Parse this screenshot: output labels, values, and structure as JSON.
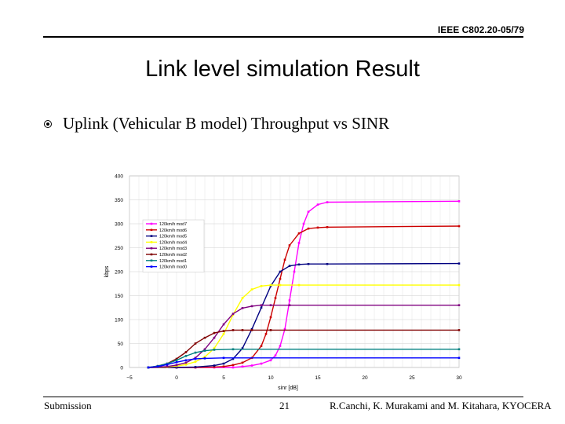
{
  "header": {
    "doc_ref": "IEEE C802.20-05/79"
  },
  "slide": {
    "title": "Link level simulation Result",
    "bullet": "Uplink (Vehicular B model) Throughput vs SINR"
  },
  "footer": {
    "left": "Submission",
    "page": "21",
    "right": "R.Canchi, K. Murakami and M. Kitahara, KYOCERA"
  },
  "chart_data": {
    "type": "line",
    "title": "",
    "xlabel": "sinr [dB]",
    "ylabel": "kbps",
    "xlim": [
      -5,
      30
    ],
    "ylim": [
      0,
      400
    ],
    "xticks": [
      -5,
      0,
      5,
      10,
      15,
      20,
      25,
      30
    ],
    "yticks": [
      0,
      50,
      100,
      150,
      200,
      250,
      300,
      350,
      400
    ],
    "grid": true,
    "legend_position": "upper-left",
    "series": [
      {
        "name": "120km/h mod7",
        "color": "#ff00ff",
        "x": [
          -3,
          0,
          2,
          4,
          6,
          7,
          8,
          9,
          10,
          10.5,
          11,
          11.5,
          12,
          12.5,
          13,
          13.5,
          14,
          15,
          16,
          30
        ],
        "y": [
          0,
          0,
          0,
          0,
          0,
          2,
          4,
          8,
          15,
          25,
          45,
          80,
          140,
          200,
          260,
          300,
          325,
          340,
          345,
          347
        ]
      },
      {
        "name": "120km/h mod6",
        "color": "#cc0000",
        "x": [
          -3,
          0,
          2,
          4,
          5,
          6,
          7,
          8,
          9,
          9.5,
          10,
          10.5,
          11,
          11.5,
          12,
          13,
          14,
          15,
          16,
          30
        ],
        "y": [
          0,
          0,
          0,
          1,
          2,
          5,
          10,
          20,
          45,
          70,
          105,
          145,
          185,
          225,
          255,
          280,
          290,
          292,
          293,
          295
        ]
      },
      {
        "name": "120km/h mod5",
        "color": "#000080",
        "x": [
          -3,
          0,
          2,
          4,
          5,
          6,
          7,
          8,
          9,
          10,
          11,
          12,
          13,
          14,
          16,
          30
        ],
        "y": [
          0,
          0,
          1,
          4,
          8,
          18,
          40,
          80,
          125,
          170,
          200,
          212,
          215,
          216,
          216,
          217
        ]
      },
      {
        "name": "120km/h mod4",
        "color": "#ffff00",
        "x": [
          -3,
          -1,
          0,
          1,
          2,
          3,
          4,
          5,
          6,
          7,
          8,
          9,
          10,
          11,
          13,
          30
        ],
        "y": [
          0,
          1,
          3,
          6,
          12,
          22,
          40,
          70,
          110,
          145,
          163,
          170,
          172,
          172,
          172,
          172
        ]
      },
      {
        "name": "120km/h mod3",
        "color": "#800080",
        "x": [
          -3,
          -1,
          0,
          1,
          2,
          3,
          4,
          5,
          6,
          7,
          8,
          9,
          10,
          12,
          30
        ],
        "y": [
          0,
          2,
          5,
          10,
          20,
          38,
          62,
          90,
          112,
          124,
          128,
          130,
          130,
          130,
          130
        ]
      },
      {
        "name": "120km/h mod2",
        "color": "#800000",
        "x": [
          -3,
          -2,
          -1,
          0,
          1,
          2,
          3,
          4,
          5,
          6,
          7,
          8,
          10,
          30
        ],
        "y": [
          0,
          3,
          8,
          18,
          32,
          50,
          62,
          72,
          76,
          78,
          78,
          78,
          78,
          78
        ]
      },
      {
        "name": "120km/h mod1",
        "color": "#008080",
        "x": [
          -3,
          -2,
          -1,
          0,
          1,
          2,
          3,
          4,
          6,
          30
        ],
        "y": [
          0,
          3,
          8,
          15,
          24,
          31,
          35,
          37,
          38,
          38
        ]
      },
      {
        "name": "120km/h mod0",
        "color": "#0000ff",
        "x": [
          -3,
          -2,
          -1,
          0,
          1,
          2,
          3,
          5,
          30
        ],
        "y": [
          0,
          2,
          6,
          11,
          15,
          18,
          19,
          20,
          20
        ]
      }
    ]
  }
}
